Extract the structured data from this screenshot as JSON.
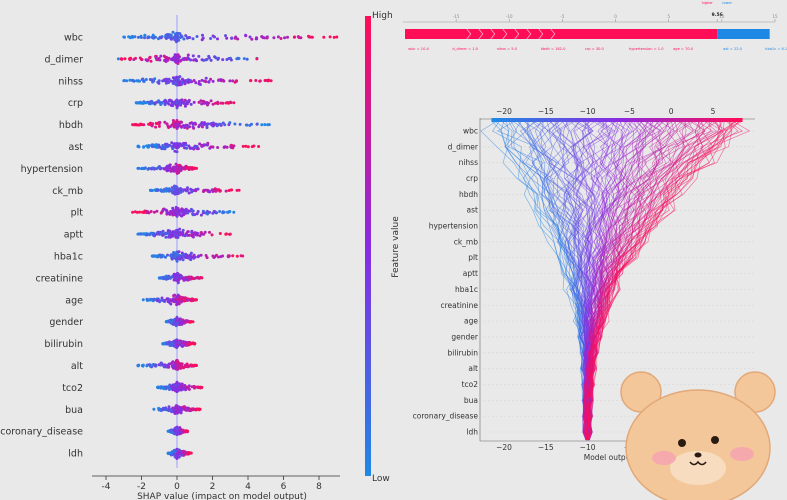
{
  "colors": {
    "background": "#e9e9e9",
    "high": "#ff0d57",
    "low": "#1e88e5",
    "mid": "#8a2be2",
    "zero_line": "#9f9fff",
    "axis": "#333333",
    "label": "#333333"
  },
  "chart_data": [
    {
      "type": "scatter",
      "subtype": "shap-beeswarm",
      "features": [
        "wbc",
        "d_dimer",
        "nihss",
        "crp",
        "hbdh",
        "ast",
        "hypertension",
        "ck_mb",
        "plt",
        "aptt",
        "hba1c",
        "creatinine",
        "age",
        "gender",
        "bilirubin",
        "alt",
        "tco2",
        "bua",
        "coronary_disease",
        "ldh"
      ],
      "extent": [
        [
          -3.0,
          9.0
        ],
        [
          -3.3,
          4.5
        ],
        [
          -3.0,
          5.3
        ],
        [
          -2.3,
          3.2
        ],
        [
          -2.5,
          5.2
        ],
        [
          -2.2,
          4.6
        ],
        [
          -2.2,
          1.1
        ],
        [
          -1.5,
          3.5
        ],
        [
          -2.5,
          3.2
        ],
        [
          -2.2,
          3.0
        ],
        [
          -1.4,
          3.7
        ],
        [
          -1.0,
          1.4
        ],
        [
          -1.9,
          1.1
        ],
        [
          -0.6,
          0.9
        ],
        [
          -0.8,
          1.0
        ],
        [
          -2.2,
          1.1
        ],
        [
          -1.1,
          1.4
        ],
        [
          -1.3,
          1.3
        ],
        [
          -0.5,
          0.6
        ],
        [
          -0.5,
          0.8
        ]
      ],
      "xlabel": "SHAP value (impact on model output)",
      "xticks": [
        -4,
        -2,
        0,
        2,
        4,
        6,
        8
      ],
      "xlim": [
        -4.5,
        9.0
      ],
      "colorbar": {
        "label": "Feature value",
        "high": "High",
        "low": "Low"
      }
    },
    {
      "type": "force",
      "subtype": "shap-force-plot",
      "value_label": "9.56",
      "split_value": 9.56,
      "xlim": [
        -20,
        15
      ],
      "ticks": [
        -15,
        -10,
        -5,
        0,
        5,
        9.56,
        10,
        15
      ],
      "partial_texts": [
        "higher",
        "lower"
      ],
      "high_contributions": [
        "wbc = 10.4",
        "d_dimer = 1.0",
        "nihss = 5.0",
        "hbdh = 182.0",
        "crp = 30.0",
        "hypertension = 1.0",
        "age = 70.0"
      ],
      "low_contributions": [
        "ast = 22.0",
        "hba1c = 6.1"
      ]
    },
    {
      "type": "line",
      "subtype": "shap-decision-plot",
      "features": [
        "wbc",
        "d_dimer",
        "nihss",
        "crp",
        "hbdh",
        "ast",
        "hypertension",
        "ck_mb",
        "plt",
        "aptt",
        "hba1c",
        "creatinine",
        "age",
        "gender",
        "bilirubin",
        "alt",
        "tco2",
        "bua",
        "coronary_disease",
        "ldh"
      ],
      "xticks": [
        -20,
        -15,
        -10,
        -5,
        0,
        5
      ],
      "xlim": [
        -23,
        10
      ],
      "xlabel": "Model output value",
      "base_value": -10.0,
      "top_min": -21.5,
      "top_max": 8.5
    }
  ]
}
